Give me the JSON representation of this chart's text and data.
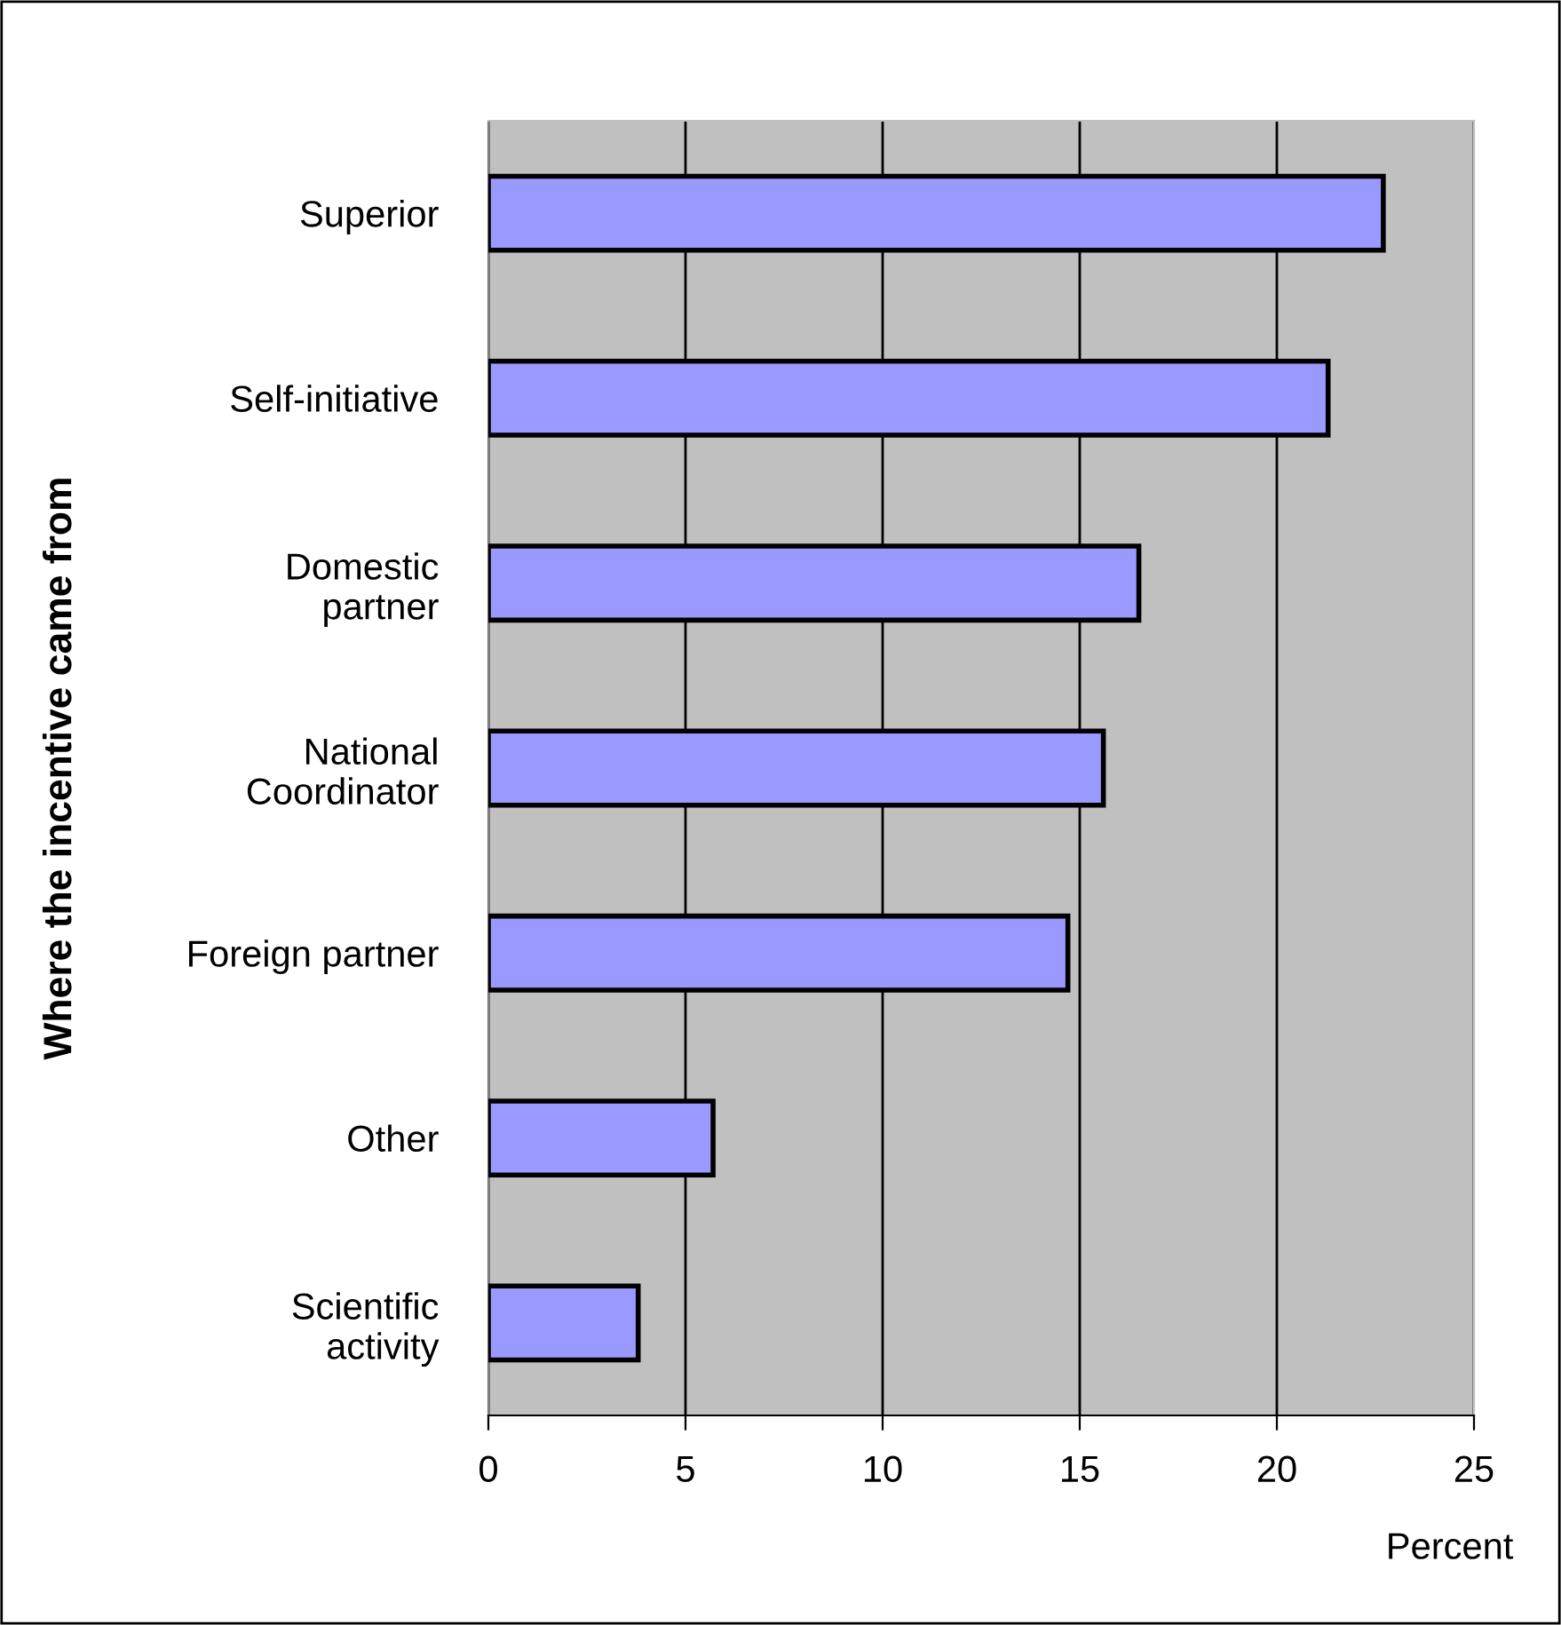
{
  "chart_data": {
    "type": "bar",
    "orientation": "horizontal",
    "categories": [
      "Superior",
      "Self-initiative",
      "Domestic\npartner",
      "National\nCoordinator",
      "Foreign partner",
      "Other",
      "Scientific\nactivity"
    ],
    "values": [
      22.7,
      21.3,
      16.5,
      15.6,
      14.7,
      5.7,
      3.8
    ],
    "color": "#9999ff",
    "xlabel": "Percent",
    "ylabel": "Where the incentive came from",
    "xlim": [
      0,
      25
    ],
    "xticks": [
      0,
      5,
      10,
      15,
      20,
      25
    ],
    "grid": "x",
    "legend": false
  }
}
